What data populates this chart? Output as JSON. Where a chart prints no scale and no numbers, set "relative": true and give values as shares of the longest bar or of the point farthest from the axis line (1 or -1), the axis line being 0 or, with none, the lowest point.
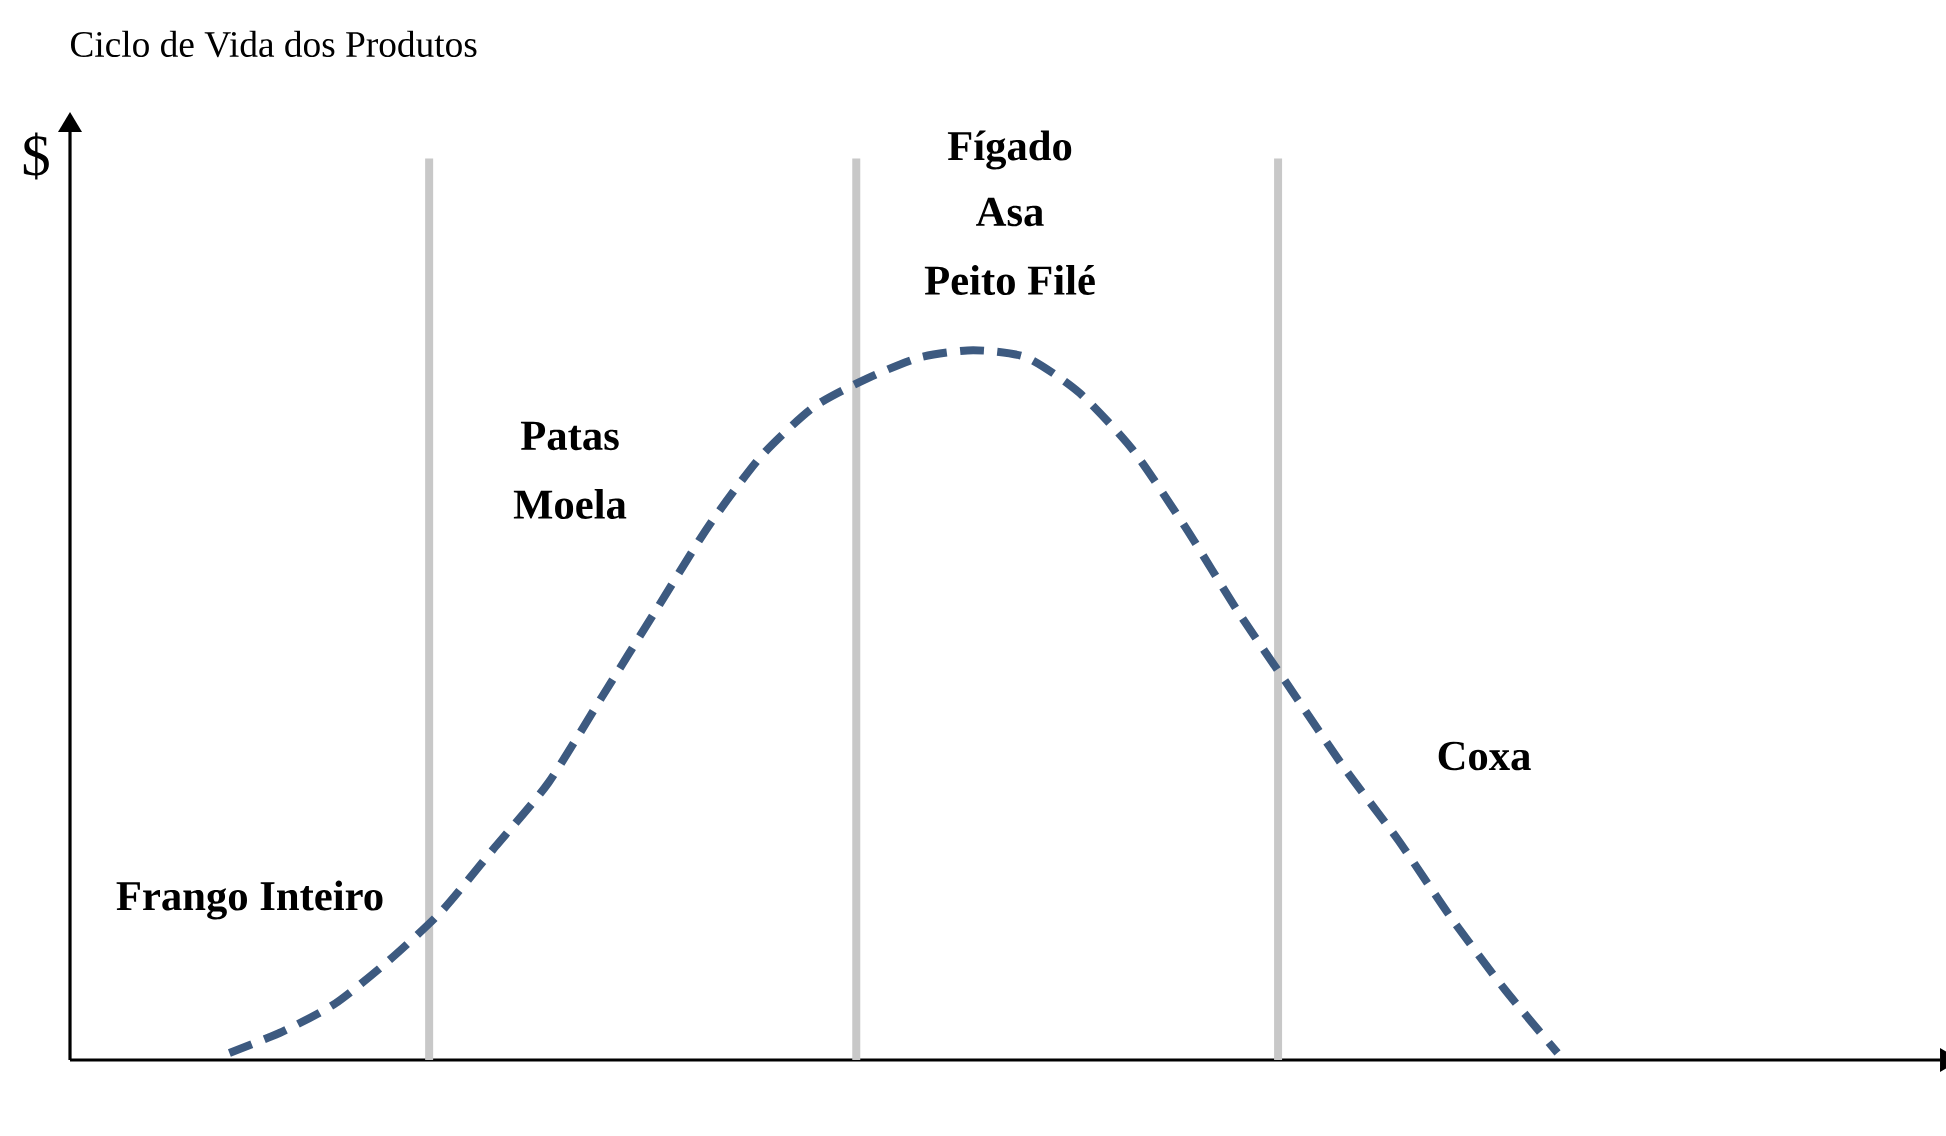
{
  "chart_data": {
    "type": "line",
    "title": "Ciclo de Vida dos Produtos",
    "ylabel": "$",
    "relative": true,
    "categories": [
      null,
      null,
      null,
      null,
      null,
      null,
      null,
      null,
      null,
      null,
      null,
      null,
      null,
      null,
      null,
      null,
      null,
      null,
      null,
      null,
      null,
      null,
      null,
      null,
      null,
      null
    ],
    "series": [
      {
        "color": "#3d5a80",
        "line_style": "dashed",
        "values": [
          0.01,
          0.04,
          0.08,
          0.14,
          0.21,
          0.3,
          0.39,
          0.51,
          0.63,
          0.75,
          0.85,
          0.92,
          0.96,
          0.99,
          1,
          0.99,
          0.94,
          0.86,
          0.75,
          0.63,
          0.52,
          0.41,
          0.31,
          0.2,
          0.1,
          0.01
        ]
      }
    ],
    "annotations": [
      "Frango Inteiro",
      "Patas",
      "Moela",
      "Fígado",
      "Asa",
      "Peito Filé",
      "Coxa"
    ],
    "marker": "none"
  }
}
